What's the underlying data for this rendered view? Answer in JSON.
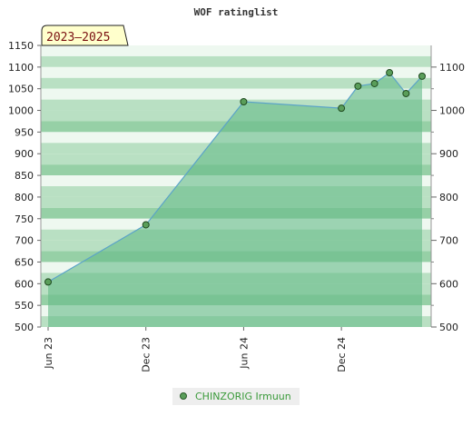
{
  "chart_data": {
    "type": "area",
    "title": "WOF ratinglist",
    "period_badge": "2023–2025",
    "x_ticks": [
      "Jun 23",
      "Dec 23",
      "Jun 24",
      "Dec 24"
    ],
    "left_yticks": [
      "1150",
      "1100",
      "1050",
      "1000",
      "950",
      "900",
      "850",
      "800",
      "750",
      "700",
      "650",
      "600",
      "550",
      "500"
    ],
    "right_yticks": [
      "1100",
      "1000",
      "900",
      "800",
      "700",
      "600",
      "500"
    ],
    "ylim": [
      500,
      1150
    ],
    "grid": "horizontal bands",
    "legend_position": "bottom-center",
    "series": [
      {
        "name": "CHINZORIG Irmuun",
        "color": "#5a9e5a",
        "points": [
          {
            "x": "2023-06-01",
            "y": 604
          },
          {
            "x": "2023-12-01",
            "y": 736
          },
          {
            "x": "2024-06-01",
            "y": 1020
          },
          {
            "x": "2024-12-01",
            "y": 1005
          },
          {
            "x": "2025-01-01",
            "y": 1056
          },
          {
            "x": "2025-02-01",
            "y": 1062
          },
          {
            "x": "2025-03-01",
            "y": 1087
          },
          {
            "x": "2025-04-01",
            "y": 1039
          },
          {
            "x": "2025-05-01",
            "y": 1079
          }
        ]
      }
    ],
    "colors": {
      "area_fill": "#66bb88",
      "line": "#5ba3c8",
      "marker": "#5a9e5a",
      "band_light": "#eef8f0",
      "band_mid": "#b9e0c3",
      "band_dark": "#96d0a6",
      "badge_bg": "#ffffcc"
    }
  }
}
